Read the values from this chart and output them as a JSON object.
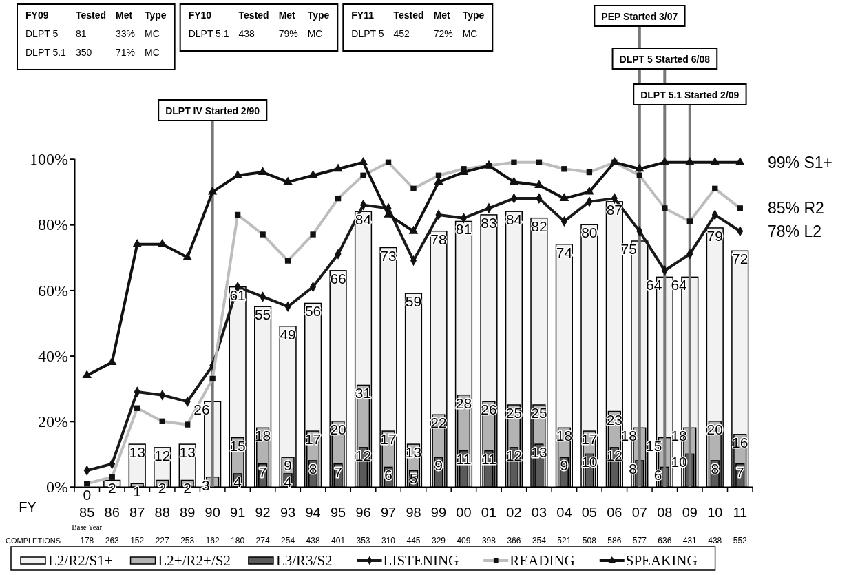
{
  "chart_data": {
    "type": "bar",
    "xlabel": "FY",
    "categories": [
      "85",
      "86",
      "87",
      "88",
      "89",
      "90",
      "91",
      "92",
      "93",
      "94",
      "95",
      "96",
      "97",
      "98",
      "99",
      "00",
      "01",
      "02",
      "03",
      "04",
      "05",
      "06",
      "07",
      "08",
      "09",
      "10",
      "11"
    ],
    "ylim": [
      0,
      100
    ],
    "yticks": [
      {
        "value": 0,
        "label": "0%"
      },
      {
        "value": 20,
        "label": "20%"
      },
      {
        "value": 40,
        "label": "40%"
      },
      {
        "value": 60,
        "label": "60%"
      },
      {
        "value": 80,
        "label": "80%"
      },
      {
        "value": 100,
        "label": "100%"
      }
    ],
    "legend": "bottom",
    "series": [
      {
        "name": "L2/R2/S1+",
        "color": "#f2f2f2",
        "values": [
          0,
          2,
          13,
          12,
          13,
          26,
          61,
          55,
          49,
          56,
          66,
          84,
          73,
          59,
          78,
          81,
          83,
          84,
          82,
          74,
          80,
          87,
          75,
          64,
          64,
          79,
          72
        ],
        "value_labels": [
          "0",
          "2",
          "13",
          "12",
          "13",
          "26",
          "61",
          "55",
          "49",
          "56",
          "66",
          "84",
          "73",
          "59",
          "78",
          "81",
          "83",
          "84",
          "82",
          "74",
          "80",
          "87",
          "75",
          "64",
          "64",
          "79",
          "72"
        ]
      },
      {
        "name": "L2+/R2+/S2",
        "color": "#b3b3b3",
        "values": [
          null,
          null,
          1,
          2,
          2,
          3,
          15,
          18,
          9,
          17,
          20,
          31,
          17,
          13,
          22,
          28,
          26,
          25,
          25,
          18,
          17,
          23,
          18,
          15,
          18,
          20,
          16
        ],
        "value_labels": [
          null,
          null,
          "1",
          "2",
          "2",
          "3",
          "15",
          "18",
          "9",
          "17",
          "20",
          "31",
          "17",
          "13",
          "22",
          "28",
          "26",
          "25",
          "25",
          "18",
          "17",
          "23",
          "18",
          "15",
          "18",
          "20",
          "16"
        ]
      },
      {
        "name": "L3/R3/S2",
        "color": "#5a5a5a",
        "values": [
          null,
          null,
          null,
          null,
          null,
          null,
          4,
          7,
          4,
          8,
          7,
          12,
          6,
          5,
          9,
          11,
          11,
          12,
          13,
          9,
          10,
          12,
          8,
          6,
          10,
          8,
          7
        ],
        "value_labels": [
          null,
          null,
          null,
          null,
          null,
          null,
          "4",
          "7",
          "4",
          "8",
          "7",
          "12",
          "6",
          "5",
          "9",
          "11",
          "11",
          "12",
          "13",
          "9",
          "10",
          "12",
          "8",
          "6",
          "10",
          "8",
          "7"
        ]
      },
      {
        "name": "LISTENING",
        "type": "line",
        "marker": "diamond",
        "color": "#1a1a1a",
        "values": [
          5,
          7,
          29,
          28,
          26,
          37,
          61,
          58,
          55,
          61,
          71,
          86,
          85,
          69,
          83,
          82,
          85,
          88,
          88,
          81,
          87,
          88,
          78,
          66,
          71,
          83,
          78
        ]
      },
      {
        "name": "READING",
        "type": "line",
        "marker": "square",
        "color": "#bdbdbd",
        "values": [
          1,
          3,
          24,
          20,
          19,
          33,
          83,
          77,
          69,
          77,
          88,
          95,
          99,
          91,
          95,
          97,
          98,
          99,
          99,
          97,
          96,
          99,
          95,
          85,
          81,
          91,
          85
        ]
      },
      {
        "name": "SPEAKING",
        "type": "line",
        "marker": "triangle",
        "color": "#111111",
        "values": [
          34,
          38,
          74,
          74,
          70,
          90,
          95,
          96,
          93,
          95,
          97,
          99,
          83,
          78,
          93,
          96,
          98,
          93,
          92,
          88,
          90,
          99,
          97,
          99,
          99,
          99,
          99
        ]
      }
    ],
    "ref_lines": [
      {
        "axis": "x",
        "value": "90",
        "label": "DLPT IV Started 2/90",
        "color": "#777777"
      },
      {
        "axis": "x",
        "value": "07",
        "label": "PEP Started 3/07",
        "color": "#777777"
      },
      {
        "axis": "x",
        "value": "08",
        "label": "DLPT 5 Started 6/08",
        "color": "#777777"
      },
      {
        "axis": "x",
        "value": "09",
        "label": "DLPT 5.1 Started 2/09",
        "color": "#777777"
      }
    ],
    "annotations": [
      "FY09\tTested\tMet\tType\nDLPT 5\t81\t33%\tMC\nDLPT 5.1\t350\t71%\tMC",
      "FY10\tTested\tMet\tType\nDLPT 5.1\t438\t79%\tMC",
      "FY11\tTested\tMet\tType\nDLPT 5\t452\t72%\tMC",
      "Base Year",
      "COMPLETIONS",
      "178",
      "263",
      "152",
      "227",
      "253",
      "162",
      "180",
      "274",
      "254",
      "438",
      "401",
      "353",
      "310",
      "445",
      "329",
      "409",
      "398",
      "366",
      "354",
      "521",
      "508",
      "586",
      "577",
      "636",
      "431",
      "438",
      "552",
      {
        "text": "99% S1+",
        "x": "11",
        "y": 99
      },
      {
        "text": "85% R2",
        "x": "11",
        "y": 85
      },
      {
        "text": "78% L2",
        "x": "11",
        "y": 78
      }
    ]
  }
}
